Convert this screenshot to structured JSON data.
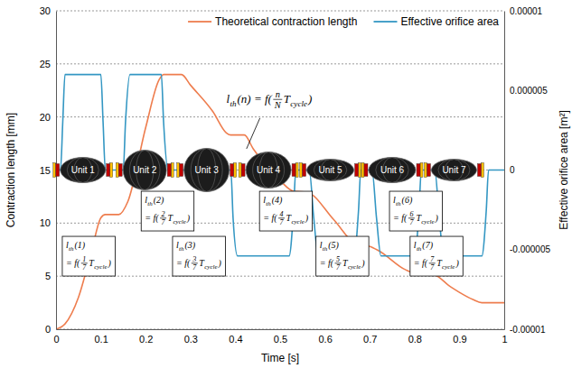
{
  "chart_data": {
    "type": "line",
    "xlabel": "Time [s]",
    "ylabel": "Contraction length [mm]",
    "y2label": "Effective orifice area  [m²]",
    "xlim": [
      0,
      1
    ],
    "xticks": [
      0,
      0.1,
      0.2,
      0.3,
      0.4,
      0.5,
      0.6,
      0.7,
      0.8,
      0.9,
      1
    ],
    "ylim": [
      0,
      30
    ],
    "yticks": [
      0,
      5,
      10,
      15,
      20,
      25,
      30
    ],
    "y2lim": [
      -1e-05,
      1e-05
    ],
    "y2ticks": [
      -1e-05,
      -5e-06,
      0,
      5e-06,
      1e-05
    ],
    "grid": true,
    "legend": "top",
    "series": [
      {
        "name": "Theoretical contraction length",
        "color": "#ee7d4e",
        "x": [
          0,
          0.02,
          0.05,
          0.08,
          0.1,
          0.11,
          0.14,
          0.16,
          0.2,
          0.23,
          0.24,
          0.28,
          0.3,
          0.35,
          0.38,
          0.39,
          0.42,
          0.44,
          0.5,
          0.53,
          0.56,
          0.62,
          0.67,
          0.7,
          0.72,
          0.78,
          0.8,
          0.84,
          0.88,
          0.93,
          0.95,
          1
        ],
        "values": [
          0,
          0.5,
          3,
          7.5,
          10.5,
          10.8,
          10.8,
          12,
          19,
          23.5,
          24,
          24,
          23,
          20.5,
          18.5,
          18.3,
          18.3,
          17,
          14,
          13,
          12.9,
          10.3,
          8,
          7.8,
          7.4,
          5.6,
          5.3,
          5.2,
          4,
          2.8,
          2.5,
          2.5
        ]
      },
      {
        "name": "Effective orifice area",
        "color": "#3497c3",
        "axis": "y2",
        "x": [
          0,
          0.01,
          0.015,
          0.02,
          0.1,
          0.105,
          0.11,
          0.15,
          0.155,
          0.165,
          0.235,
          0.24,
          0.25,
          0.39,
          0.395,
          0.405,
          0.52,
          0.53,
          0.535,
          0.565,
          0.575,
          0.585,
          0.665,
          0.675,
          0.68,
          0.705,
          0.715,
          0.725,
          0.8,
          0.81,
          0.815,
          0.845,
          0.855,
          0.865,
          0.95,
          0.96,
          0.965,
          1
        ],
        "values": [
          0,
          0,
          3e-06,
          6e-06,
          6e-06,
          3e-06,
          0,
          0,
          3e-06,
          6e-06,
          6e-06,
          3e-06,
          0,
          0,
          -3e-06,
          -5.4e-06,
          -5.4e-06,
          -2.5e-06,
          0,
          0,
          -3e-06,
          -5.4e-06,
          -5.4e-06,
          -2.5e-06,
          0,
          0,
          -3e-06,
          -5.4e-06,
          -5.4e-06,
          -2.5e-06,
          0,
          0,
          -3e-06,
          -5.4e-06,
          -5.4e-06,
          -2.5e-06,
          0,
          0
        ]
      }
    ],
    "units": [
      "Unit 1",
      "Unit 2",
      "Unit 3",
      "Unit 4",
      "Unit 5",
      "Unit 6",
      "Unit 7"
    ],
    "annotations": {
      "formula": {
        "segments": [
          {
            "base": "l",
            "sub": "th"
          },
          {
            "text": "(n) = f("
          },
          {
            "num": "n",
            "den": "N"
          },
          {
            "base": "T",
            "sub": "cycle"
          },
          {
            "text": ")"
          }
        ]
      },
      "boxes": [
        {
          "lines": [
            [
              {
                "base": "l",
                "sub": "th"
              },
              {
                "text": "(1)"
              }
            ],
            [
              {
                "text": "= f("
              },
              {
                "num": "1",
                "den": "7"
              },
              {
                "base": "T",
                "sub": "cycle"
              },
              {
                "text": ")"
              }
            ]
          ]
        },
        {
          "lines": [
            [
              {
                "base": "l",
                "sub": "th"
              },
              {
                "text": "(2)"
              }
            ],
            [
              {
                "text": "= f("
              },
              {
                "num": "2",
                "den": "7"
              },
              {
                "base": "T",
                "sub": "cycle"
              },
              {
                "text": ")"
              }
            ]
          ]
        },
        {
          "lines": [
            [
              {
                "base": "l",
                "sub": "th"
              },
              {
                "text": "(3)"
              }
            ],
            [
              {
                "text": "= f("
              },
              {
                "num": "3",
                "den": "7"
              },
              {
                "base": "T",
                "sub": "cycle"
              },
              {
                "text": ")"
              }
            ]
          ]
        },
        {
          "lines": [
            [
              {
                "base": "l",
                "sub": "th"
              },
              {
                "text": "(4)"
              }
            ],
            [
              {
                "text": "= f("
              },
              {
                "num": "4",
                "den": "7"
              },
              {
                "base": "T",
                "sub": "cycle"
              },
              {
                "text": ")"
              }
            ]
          ]
        },
        {
          "lines": [
            [
              {
                "base": "l",
                "sub": "th"
              },
              {
                "text": "(5)"
              }
            ],
            [
              {
                "text": "= f("
              },
              {
                "num": "5",
                "den": "7"
              },
              {
                "base": "T",
                "sub": "cycle"
              },
              {
                "text": ")"
              }
            ]
          ]
        },
        {
          "lines": [
            [
              {
                "base": "l",
                "sub": "th"
              },
              {
                "text": "(6)"
              }
            ],
            [
              {
                "text": "= f("
              },
              {
                "num": "6",
                "den": "7"
              },
              {
                "base": "T",
                "sub": "cycle"
              },
              {
                "text": ")"
              }
            ]
          ]
        },
        {
          "lines": [
            [
              {
                "base": "l",
                "sub": "th"
              },
              {
                "text": "(7)"
              }
            ],
            [
              {
                "text": "= f("
              },
              {
                "num": "7",
                "den": "7"
              },
              {
                "base": "T",
                "sub": "cycle"
              },
              {
                "text": ")"
              }
            ]
          ]
        }
      ]
    }
  }
}
